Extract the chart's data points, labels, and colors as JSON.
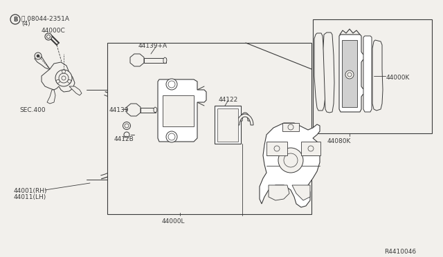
{
  "bg_color": "#f2f0ec",
  "line_color": "#3a3a3a",
  "white": "#ffffff",
  "title_ref": "R4410046",
  "labels": {
    "bolt_ref_1": "Ⓑ 08044-2351A",
    "bolt_ref_2": "(4)",
    "part_44000C": "44000C",
    "sec400": "SEC.400",
    "part_44139A": "44139+A",
    "part_44139": "44139",
    "part_44122": "44122",
    "part_4412B": "4412B",
    "part_44000L": "44000L",
    "part_44001": "44001(RH)",
    "part_44011": "44011(LH)",
    "part_44000K": "44000K",
    "part_44080K": "44080K"
  },
  "font_size": 6.5
}
